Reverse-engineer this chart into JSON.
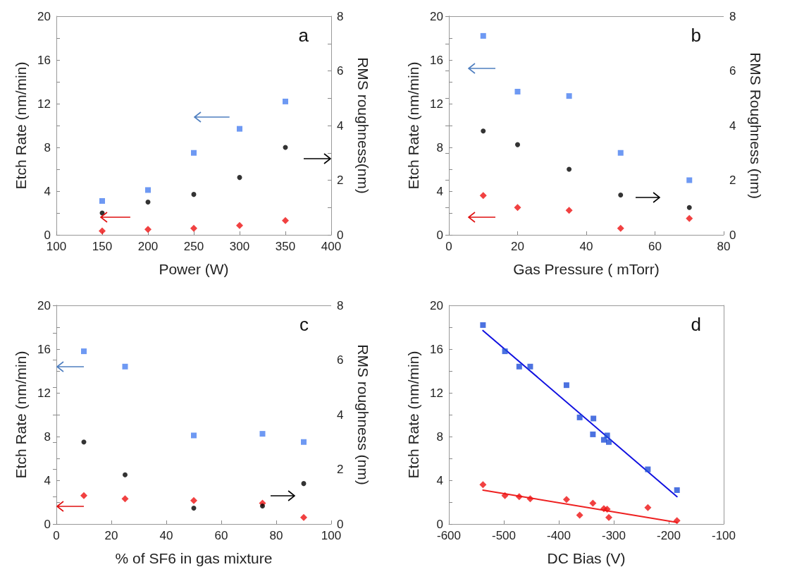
{
  "chart_data": [
    {
      "type": "scatter",
      "annotations": [
        "a"
      ],
      "xlabel": "Power (W)",
      "ylabel": "Etch Rate (nm/min)",
      "y2label": "RMS roughness(nm)",
      "xlim": [
        100,
        400
      ],
      "xticks": [
        100,
        150,
        200,
        250,
        300,
        350,
        400
      ],
      "ylim": [
        0,
        20
      ],
      "yticks": [
        0,
        {
          "value": 2,
          "label": null
        },
        4,
        {
          "value": 6,
          "label": null
        },
        8,
        {
          "value": 10,
          "label": null
        },
        12,
        {
          "value": 14,
          "label": null
        },
        16,
        {
          "value": 18,
          "label": null
        },
        20
      ],
      "y2lim": [
        0,
        8
      ],
      "y2ticks": [
        0,
        {
          "value": 1,
          "label": null
        },
        2,
        {
          "value": 3,
          "label": null
        },
        4,
        {
          "value": 5,
          "label": null
        },
        6,
        {
          "value": 7,
          "label": null
        },
        8
      ],
      "series": [
        {
          "color": "#4a80f0",
          "marker": "square",
          "x": [
            150,
            200,
            250,
            300,
            350
          ],
          "values": [
            3.1,
            4.1,
            7.5,
            9.7,
            12.2
          ]
        },
        {
          "color": "#ee1111",
          "marker": "diamond",
          "x": [
            150,
            200,
            250,
            300,
            350
          ],
          "values": [
            0.35,
            0.5,
            0.6,
            0.85,
            1.3
          ]
        },
        {
          "color": "#000000",
          "marker": "circle",
          "axis": "y2",
          "x": [
            150,
            200,
            250,
            300,
            350
          ],
          "values": [
            0.8,
            1.2,
            1.48,
            2.1,
            3.2
          ]
        }
      ]
    },
    {
      "type": "scatter",
      "annotations": [
        "b"
      ],
      "xlabel": "Gas Pressure ( mTorr)",
      "ylabel": "Etch Rate (nm/min)",
      "y2label": "RMS Roughness (nm)",
      "xlim": [
        0,
        80
      ],
      "xticks": [
        0,
        20,
        40,
        60,
        80
      ],
      "ylim": [
        0,
        20
      ],
      "yticks": [
        0,
        {
          "value": 2,
          "label": null
        },
        4,
        {
          "value": 6,
          "label": null
        },
        8,
        {
          "value": 10,
          "label": null
        },
        12,
        {
          "value": 14,
          "label": null
        },
        16,
        {
          "value": 18,
          "label": null
        },
        20
      ],
      "y2lim": [
        0,
        8
      ],
      "y2ticks": [
        0,
        {
          "value": 1,
          "label": null
        },
        2,
        {
          "value": 3,
          "label": null
        },
        4,
        {
          "value": 5,
          "label": null
        },
        6,
        {
          "value": 7,
          "label": null
        },
        8
      ],
      "series": [
        {
          "color": "#4a80f0",
          "marker": "square",
          "x": [
            10,
            20,
            35,
            50,
            70
          ],
          "values": [
            18.2,
            13.1,
            12.7,
            7.5,
            5.0
          ]
        },
        {
          "color": "#ee1111",
          "marker": "diamond",
          "x": [
            10,
            20,
            35,
            50,
            70
          ],
          "values": [
            3.6,
            2.5,
            2.25,
            0.6,
            1.5
          ]
        },
        {
          "color": "#000000",
          "marker": "circle",
          "axis": "y2",
          "x": [
            10,
            20,
            35,
            50,
            70
          ],
          "values": [
            3.8,
            3.3,
            2.4,
            1.46,
            1.0
          ]
        }
      ]
    },
    {
      "type": "scatter",
      "annotations": [
        "c"
      ],
      "xlabel": "% of SF6 in gas mixture",
      "ylabel": "Etch Rate (nm/min)",
      "y2label": "RMS roughness (nm)",
      "xlim": [
        0,
        100
      ],
      "xticks": [
        0,
        20,
        40,
        60,
        80,
        100
      ],
      "ylim": [
        0,
        20
      ],
      "yticks": [
        0,
        {
          "value": 2,
          "label": null
        },
        4,
        {
          "value": 6,
          "label": null
        },
        8,
        {
          "value": 10,
          "label": null
        },
        12,
        {
          "value": 14,
          "label": null
        },
        16,
        {
          "value": 18,
          "label": null
        },
        20
      ],
      "y2lim": [
        0,
        8
      ],
      "y2ticks": [
        0,
        {
          "value": 1,
          "label": null
        },
        2,
        {
          "value": 3,
          "label": null
        },
        4,
        {
          "value": 5,
          "label": null
        },
        6,
        {
          "value": 7,
          "label": null
        },
        8
      ],
      "series": [
        {
          "color": "#4a80f0",
          "marker": "square",
          "x": [
            10,
            25,
            50,
            75,
            90
          ],
          "values": [
            15.8,
            14.4,
            8.1,
            8.25,
            7.5
          ]
        },
        {
          "color": "#ee1111",
          "marker": "diamond",
          "x": [
            10,
            25,
            50,
            75,
            90
          ],
          "values": [
            2.6,
            2.3,
            2.15,
            1.9,
            0.6
          ]
        },
        {
          "color": "#000000",
          "marker": "circle",
          "axis": "y2",
          "x": [
            10,
            25,
            50,
            75,
            90
          ],
          "values": [
            3.0,
            1.8,
            0.58,
            0.66,
            1.48
          ]
        }
      ]
    },
    {
      "type": "scatter",
      "annotations": [
        "d"
      ],
      "xlabel": "DC Bias (V)",
      "ylabel": "Etch Rate (nm/min)",
      "xlim": [
        -600,
        -100
      ],
      "xticks": [
        -600,
        -500,
        -400,
        -300,
        -200,
        -100
      ],
      "ylim": [
        0,
        20
      ],
      "yticks": [
        0,
        {
          "value": 2,
          "label": null
        },
        4,
        {
          "value": 6,
          "label": null
        },
        8,
        {
          "value": 10,
          "label": null
        },
        12,
        {
          "value": 14,
          "label": null
        },
        16,
        {
          "value": 18,
          "label": null
        },
        20
      ],
      "series": [
        {
          "color": "#1f4fd8",
          "marker": "square",
          "x": [
            -538,
            -498,
            -472,
            -452,
            -386,
            -362,
            -337,
            -338,
            -318,
            -312,
            -309,
            -238,
            -185
          ],
          "values": [
            18.2,
            15.8,
            14.4,
            14.4,
            12.7,
            9.75,
            9.65,
            8.2,
            7.7,
            8.1,
            7.5,
            5.0,
            3.1
          ]
        },
        {
          "color": "#ee1111",
          "marker": "diamond",
          "x": [
            -538,
            -498,
            -472,
            -452,
            -386,
            -362,
            -338,
            -318,
            -312,
            -309,
            -238,
            -185
          ],
          "values": [
            3.6,
            2.6,
            2.5,
            2.3,
            2.25,
            0.8,
            1.9,
            1.4,
            1.35,
            0.6,
            1.5,
            0.3
          ]
        },
        {
          "type": "line",
          "color": "#1010e0",
          "marker": "none",
          "line_style": "solid",
          "x": [
            -538,
            -185
          ],
          "values": [
            17.7,
            2.5
          ]
        },
        {
          "type": "line",
          "color": "#ee2020",
          "marker": "none",
          "line_style": "solid",
          "x": [
            -538,
            -185
          ],
          "values": [
            3.1,
            0.15
          ]
        }
      ]
    }
  ]
}
